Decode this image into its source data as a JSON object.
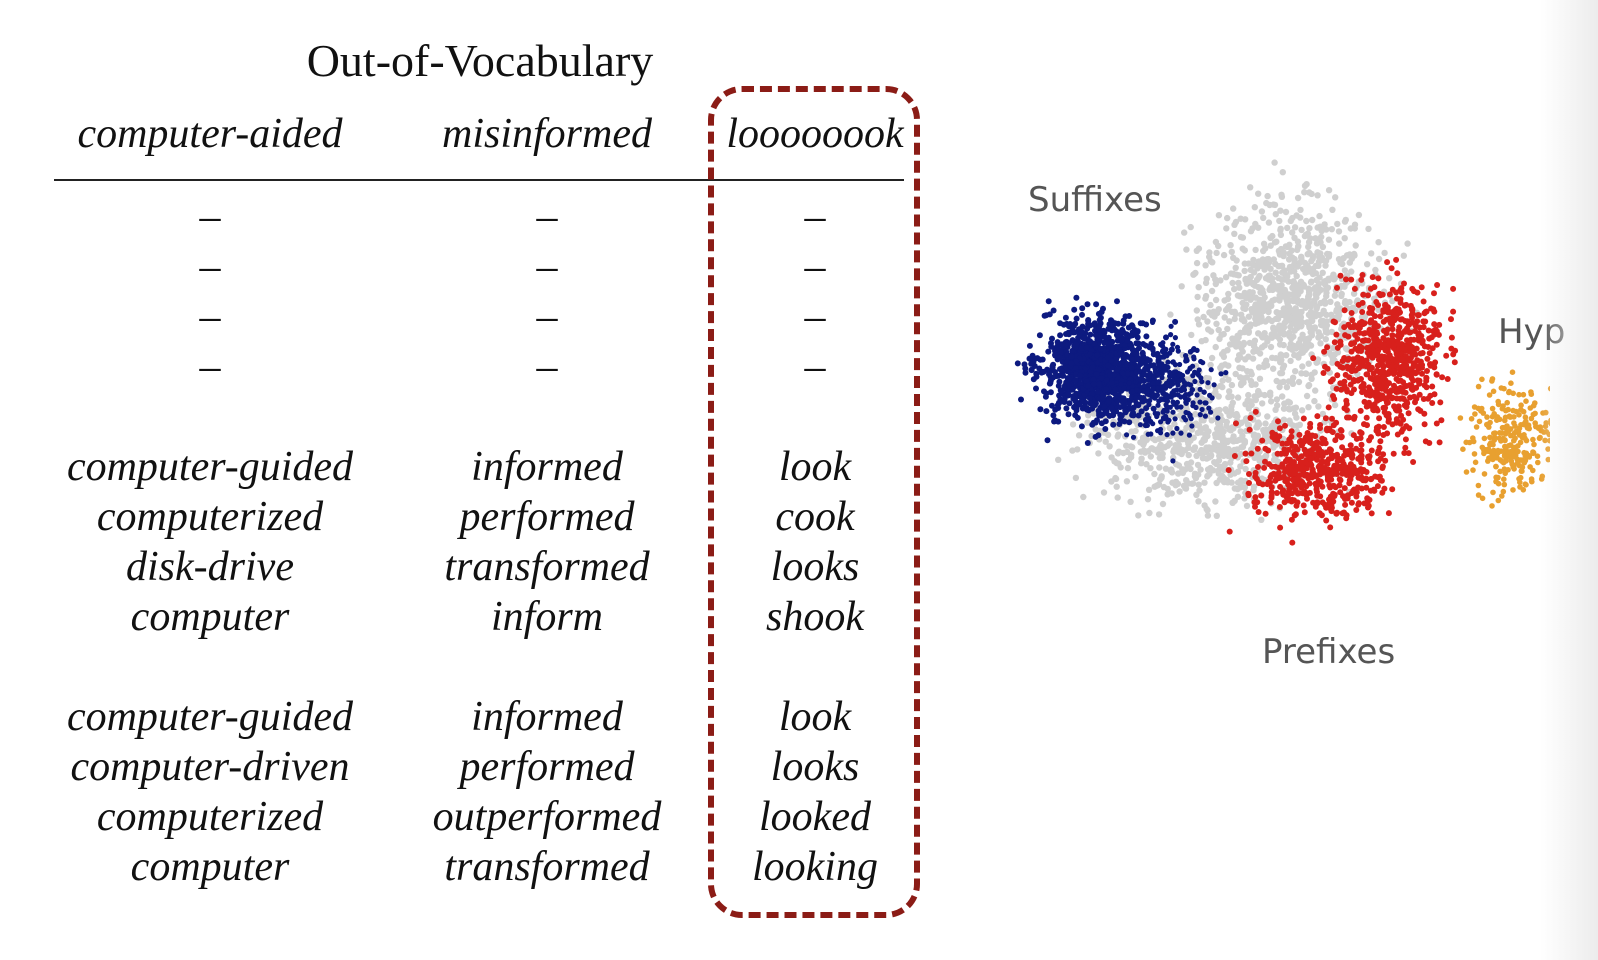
{
  "table": {
    "title": "Out-of-Vocabulary",
    "columns": [
      {
        "header": "computer-aided",
        "group1": [
          "–",
          "–",
          "–",
          "–"
        ],
        "group2": [
          "computer-guided",
          "computerized",
          "disk-drive",
          "computer"
        ],
        "group3": [
          "computer-guided",
          "computer-driven",
          "computerized",
          "computer"
        ]
      },
      {
        "header": "misinformed",
        "group1": [
          "–",
          "–",
          "–",
          "–"
        ],
        "group2": [
          "informed",
          "performed",
          "transformed",
          "inform"
        ],
        "group3": [
          "informed",
          "performed",
          "outperformed",
          "transformed"
        ]
      },
      {
        "header": "loooooook",
        "group1": [
          "–",
          "–",
          "–",
          "–"
        ],
        "group2": [
          "look",
          "cook",
          "looks",
          "shook"
        ],
        "group3": [
          "look",
          "looks",
          "looked",
          "looking"
        ]
      }
    ]
  },
  "plot": {
    "labels": {
      "suffixes": "Suffixes",
      "prefixes": "Prefixes",
      "hyphen_partial": "Hyp"
    },
    "colors": {
      "suffixes": "#0d1a80",
      "prefixes": "#d8201c",
      "hyphen": "#e8a030",
      "background": "#cfcfcf",
      "highlight_box": "#8b1c16"
    }
  }
}
